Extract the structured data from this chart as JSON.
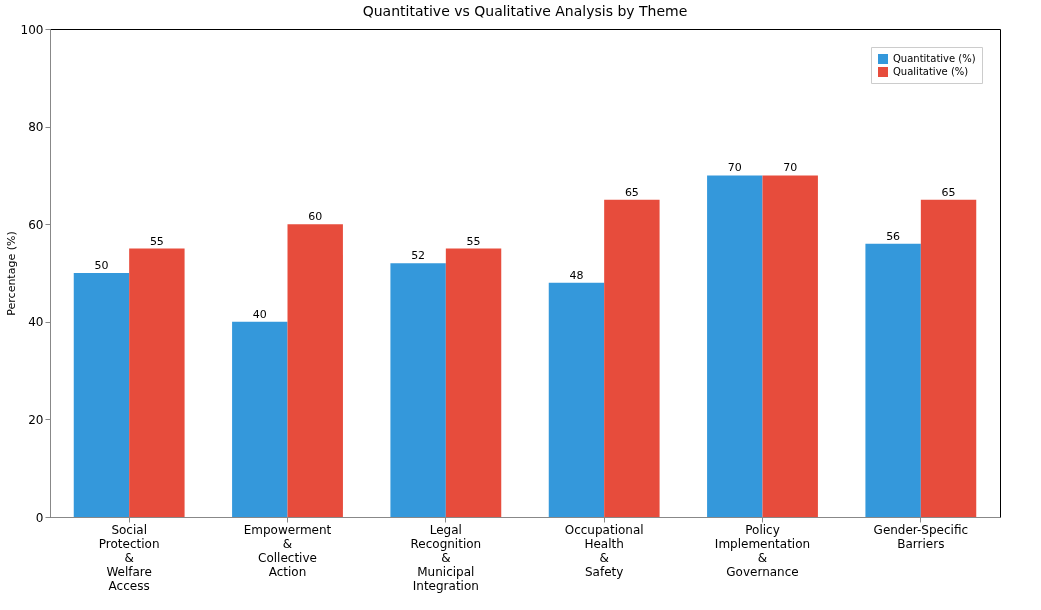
{
  "chart_data": {
    "type": "bar",
    "title": "Quantitative vs Qualitative Analysis by Theme",
    "ylabel": "Percentage (%)",
    "categories": [
      "Social Protection & Welfare Access",
      "Empowerment & Collective Action",
      "Legal Recognition & Municipal Integration",
      "Occupational Health & Safety",
      "Policy Implementation & Governance",
      "Gender-Specific Barriers"
    ],
    "series": [
      {
        "name": "Quantitative (%)",
        "color": "#3498db",
        "values": [
          50,
          40,
          52,
          48,
          70,
          56
        ]
      },
      {
        "name": "Qualitative (%)",
        "color": "#e74c3c",
        "values": [
          55,
          60,
          55,
          65,
          70,
          65
        ]
      }
    ],
    "ylim": [
      0,
      100
    ],
    "yticks": [
      0,
      20,
      40,
      60,
      80,
      100
    ],
    "grid": false,
    "legend": "top right",
    "data_labels": true
  }
}
